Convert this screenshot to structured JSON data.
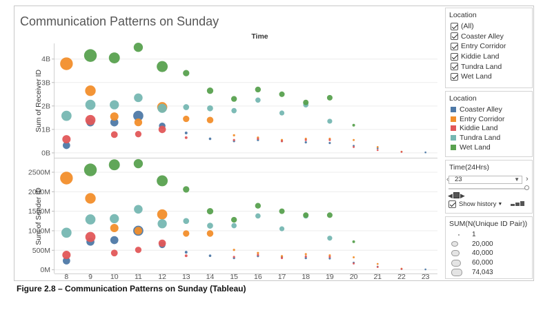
{
  "caption": "Figure 2.8 – Communication Patterns on Sunday (Tableau)",
  "chart_data": {
    "type": "scatter",
    "title": "Communication Patterns on Sunday",
    "column_header": "Time",
    "x": [
      8,
      9,
      10,
      11,
      12,
      13,
      14,
      15,
      16,
      17,
      18,
      19,
      20,
      21,
      22,
      23
    ],
    "xlim": [
      7.5,
      23.5
    ],
    "colors": {
      "Coaster Alley": "#4e79a7",
      "Entry Corridor": "#f28e2b",
      "Kiddie Land": "#e15759",
      "Tundra Land": "#76b7b2",
      "Wet Land": "#59a14f"
    },
    "panels": [
      {
        "ylabel": "Sum of Receiver ID",
        "yticks": [
          "0B",
          "1B",
          "2B",
          "3B",
          "4B"
        ],
        "ytick_values": [
          0,
          1,
          2,
          3,
          4
        ],
        "ylim": [
          -0.12,
          4.55
        ],
        "unit": "billions",
        "series": [
          {
            "name": "Coaster Alley",
            "values": [
              0.32,
              1.3,
              1.3,
              1.58,
              1.15,
              0.85,
              0.6,
              0.5,
              0.55,
              0.5,
              0.45,
              0.42,
              0.3,
              0.2,
              0.05,
              0.02
            ]
          },
          {
            "name": "Entry Corridor",
            "values": [
              3.8,
              2.65,
              1.55,
              1.3,
              1.95,
              1.45,
              1.4,
              0.75,
              0.65,
              0.55,
              0.6,
              0.6,
              0.55,
              0.25,
              0.05,
              null
            ]
          },
          {
            "name": "Kiddie Land",
            "values": [
              0.58,
              1.4,
              0.78,
              0.8,
              1.0,
              0.65,
              null,
              0.55,
              0.6,
              0.5,
              0.55,
              0.55,
              0.25,
              0.12,
              0.04,
              null
            ]
          },
          {
            "name": "Tundra Land",
            "values": [
              1.58,
              2.05,
              2.05,
              2.35,
              1.9,
              1.95,
              1.9,
              1.8,
              2.25,
              1.7,
              2.05,
              1.35,
              null,
              null,
              null,
              null
            ]
          },
          {
            "name": "Wet Land",
            "values": [
              null,
              4.15,
              4.05,
              4.5,
              3.68,
              3.4,
              2.65,
              2.3,
              2.7,
              2.5,
              2.15,
              2.35,
              1.18,
              null,
              null,
              null
            ]
          }
        ]
      },
      {
        "ylabel": "Sum of Sender ID",
        "yticks": [
          "0M",
          "500M",
          "1000M",
          "1500M",
          "2000M",
          "2500M"
        ],
        "ytick_values": [
          0,
          500,
          1000,
          1500,
          2000,
          2500
        ],
        "ylim": [
          -60,
          2800
        ],
        "unit": "millions",
        "series": [
          {
            "name": "Coaster Alley",
            "values": [
              230,
              720,
              760,
              1000,
              640,
              450,
              360,
              300,
              350,
              330,
              300,
              290,
              180,
              80,
              20,
              10
            ]
          },
          {
            "name": "Entry Corridor",
            "values": [
              2350,
              1830,
              1070,
              1000,
              1420,
              930,
              930,
              510,
              430,
              350,
              400,
              370,
              320,
              150,
              30,
              null
            ]
          },
          {
            "name": "Kiddie Land",
            "values": [
              380,
              840,
              430,
              510,
              680,
              360,
              null,
              330,
              380,
              300,
              340,
              330,
              160,
              70,
              20,
              null
            ]
          },
          {
            "name": "Tundra Land",
            "values": [
              950,
              1290,
              1310,
              1550,
              1180,
              1250,
              1130,
              1130,
              1380,
              1050,
              1380,
              810,
              null,
              null,
              null,
              null
            ]
          },
          {
            "name": "Wet Land",
            "values": [
              null,
              2560,
              2690,
              2720,
              2280,
              2060,
              1500,
              1280,
              1640,
              1500,
              1400,
              1400,
              720,
              null,
              null,
              null
            ]
          }
        ]
      }
    ],
    "sizes": {
      "Coaster Alley": [
        15000,
        20000,
        20000,
        40000,
        10000,
        2000,
        1500,
        1000,
        1000,
        1000,
        1000,
        800,
        500,
        200,
        100,
        50
      ],
      "Entry Corridor": [
        74000,
        45000,
        22000,
        18000,
        40000,
        9000,
        10000,
        1000,
        1000,
        800,
        800,
        800,
        500,
        200,
        100,
        null
      ],
      "Kiddie Land": [
        22000,
        40000,
        11000,
        9000,
        15000,
        2000,
        null,
        800,
        800,
        800,
        800,
        800,
        400,
        200,
        100,
        null
      ],
      "Tundra Land": [
        40000,
        40000,
        30000,
        25000,
        30000,
        7000,
        7000,
        4000,
        4000,
        3000,
        4000,
        3000,
        null,
        null,
        null,
        null
      ],
      "Wet Land": [
        null,
        74000,
        50000,
        30000,
        50000,
        9000,
        9000,
        6000,
        6000,
        5000,
        5000,
        5000,
        2000,
        null,
        null,
        null
      ]
    }
  },
  "sidebar": {
    "location_filter": {
      "title": "Location",
      "items": [
        "(All)",
        "Coaster Alley",
        "Entry Corridor",
        "Kiddie Land",
        "Tundra Land",
        "Wet Land"
      ]
    },
    "location_legend": {
      "title": "Location",
      "items": [
        {
          "label": "Coaster Alley",
          "color": "#4e79a7"
        },
        {
          "label": "Entry Corridor",
          "color": "#f28e2b"
        },
        {
          "label": "Kiddie Land",
          "color": "#e15759"
        },
        {
          "label": "Tundra Land",
          "color": "#76b7b2"
        },
        {
          "label": "Wet Land",
          "color": "#59a14f"
        }
      ]
    },
    "time_pages": {
      "title": "Time(24Hrs)",
      "selected": "23",
      "show_history": "Show history"
    },
    "size_legend": {
      "title": "SUM(N(Unique ID Pair))",
      "items": [
        {
          "label": "1",
          "value": 1
        },
        {
          "label": "20,000",
          "value": 20000
        },
        {
          "label": "40,000",
          "value": 40000
        },
        {
          "label": "60,000",
          "value": 60000
        },
        {
          "label": "74,043",
          "value": 74043
        }
      ]
    }
  }
}
